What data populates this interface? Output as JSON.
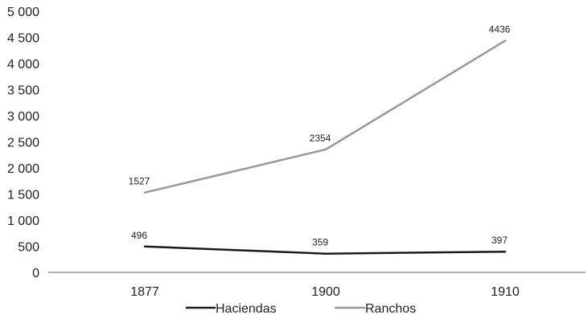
{
  "chart_data": {
    "type": "line",
    "title": "",
    "xlabel": "",
    "ylabel": "",
    "categories": [
      "1877",
      "1900",
      "1910"
    ],
    "ylim": [
      0,
      5000
    ],
    "yticks": [
      0,
      500,
      1000,
      1500,
      2000,
      2500,
      3000,
      3500,
      4000,
      4500,
      5000
    ],
    "ytick_labels": [
      "0",
      "500",
      "1 000",
      "1 500",
      "2 000",
      "2 500",
      "3 000",
      "3 500",
      "4 000",
      "4 500",
      "5 000"
    ],
    "grid": false,
    "legend_position": "bottom",
    "series": [
      {
        "name": "Haciendas",
        "values": [
          496,
          359,
          397
        ],
        "labels": [
          "496",
          "359",
          "397"
        ],
        "color": "#1a1a1a"
      },
      {
        "name": "Ranchos",
        "values": [
          1527,
          2354,
          4436
        ],
        "labels": [
          "1527",
          "2354",
          "4436"
        ],
        "color": "#999999"
      }
    ]
  }
}
